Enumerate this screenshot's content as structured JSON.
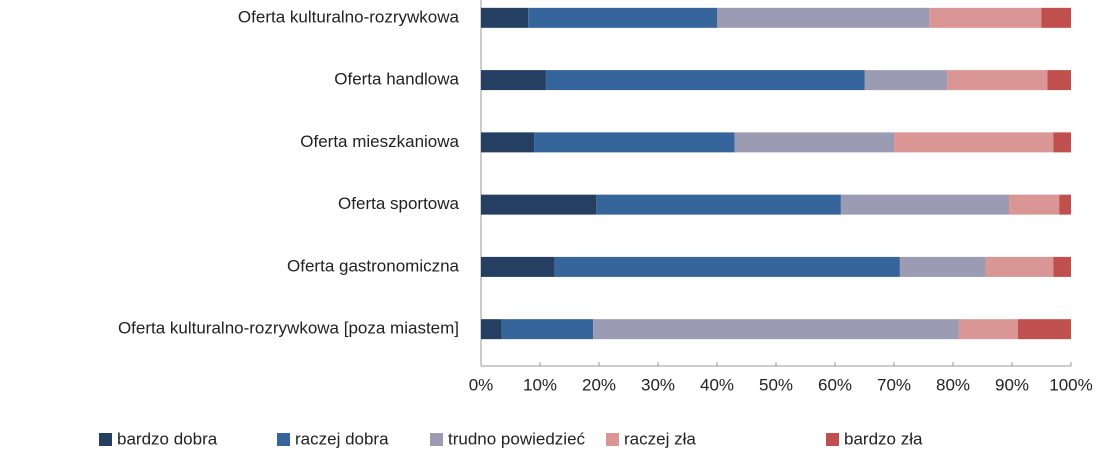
{
  "chart_data": {
    "type": "stacked-bar-horizontal",
    "categories": [
      "Oferta kulturalno-rozrywkowa",
      "Oferta handlowa",
      "Oferta mieszkaniowa",
      "Oferta sportowa",
      "Oferta gastronomiczna",
      "Oferta kulturalno-rozrywkowa [poza miastem]"
    ],
    "series": [
      {
        "name": "bardzo dobra",
        "color": "#253f62",
        "values": [
          8,
          11,
          9,
          19.5,
          12.5,
          3.5
        ]
      },
      {
        "name": "raczej dobra",
        "color": "#35659a",
        "values": [
          32,
          54,
          34,
          41.5,
          58.5,
          15.5
        ]
      },
      {
        "name": "trudno powiedzieć",
        "color": "#9b9bb3",
        "values": [
          36,
          14,
          27,
          28.5,
          14.5,
          62
        ]
      },
      {
        "name": "raczej zła",
        "color": "#da9694",
        "values": [
          19,
          17,
          27,
          8.5,
          11.5,
          10
        ]
      },
      {
        "name": "bardzo zła",
        "color": "#c0504d",
        "values": [
          5,
          4,
          3,
          2,
          3,
          9
        ]
      }
    ],
    "xlim": [
      0,
      100
    ],
    "xticks": [
      {
        "value": 0,
        "label": "0%"
      },
      {
        "value": 10,
        "label": "10%"
      },
      {
        "value": 20,
        "label": "20%"
      },
      {
        "value": 30,
        "label": "30%"
      },
      {
        "value": 40,
        "label": "40%"
      },
      {
        "value": 50,
        "label": "50%"
      },
      {
        "value": 60,
        "label": "60%"
      },
      {
        "value": 70,
        "label": "70%"
      },
      {
        "value": 80,
        "label": "80%"
      },
      {
        "value": 90,
        "label": "90%"
      },
      {
        "value": 100,
        "label": "100%"
      }
    ],
    "legend": "bottom"
  }
}
